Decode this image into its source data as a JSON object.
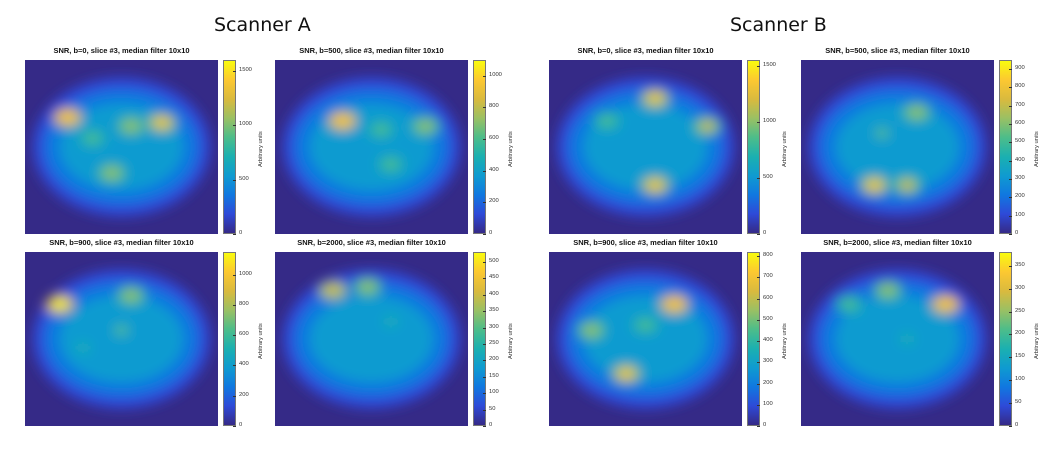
{
  "scanners": [
    {
      "name": "Scanner A"
    },
    {
      "name": "Scanner B"
    }
  ],
  "colormap": [
    "#352a87",
    "#2e4ad8",
    "#1078e0",
    "#0f9bd0",
    "#1bb0b0",
    "#4dbd8a",
    "#9ac064",
    "#d9ba3e",
    "#fcc831",
    "#f9fb0e"
  ],
  "chart_data": [
    {
      "type": "heatmap",
      "scanner": "Scanner A",
      "title": "SNR, b=0, slice #3, median filter 10x10",
      "colorbar_label": "Arbitrary units",
      "clim": [
        0,
        1600
      ],
      "colorbar_ticks": [
        "0",
        "500",
        "1000",
        "1500"
      ],
      "colorbar_tick_values": [
        0,
        500,
        1000,
        1500
      ],
      "hotspots": [
        {
          "x": 0.22,
          "y": 0.33,
          "v": 0.75
        },
        {
          "x": 0.71,
          "y": 0.36,
          "v": 0.7
        },
        {
          "x": 0.55,
          "y": 0.38,
          "v": 0.55
        },
        {
          "x": 0.45,
          "y": 0.65,
          "v": 0.5
        },
        {
          "x": 0.35,
          "y": 0.45,
          "v": 0.4
        }
      ]
    },
    {
      "type": "heatmap",
      "scanner": "Scanner A",
      "title": "SNR, b=500, slice #3, median filter 10x10",
      "colorbar_label": "Arbitrary units",
      "clim": [
        0,
        1100
      ],
      "colorbar_ticks": [
        "0",
        "200",
        "400",
        "600",
        "800",
        "1000"
      ],
      "colorbar_tick_values": [
        0,
        200,
        400,
        600,
        800,
        1000
      ],
      "hotspots": [
        {
          "x": 0.35,
          "y": 0.35,
          "v": 0.75
        },
        {
          "x": 0.55,
          "y": 0.4,
          "v": 0.45
        },
        {
          "x": 0.78,
          "y": 0.38,
          "v": 0.55
        },
        {
          "x": 0.6,
          "y": 0.6,
          "v": 0.4
        }
      ]
    },
    {
      "type": "heatmap",
      "scanner": "Scanner A",
      "title": "SNR, b=900, slice #3, median filter 10x10",
      "colorbar_label": "Arbitrary units",
      "clim": [
        0,
        1150
      ],
      "colorbar_ticks": [
        "0",
        "200",
        "400",
        "600",
        "800",
        "1000"
      ],
      "colorbar_tick_values": [
        0,
        200,
        400,
        600,
        800,
        1000
      ],
      "hotspots": [
        {
          "x": 0.18,
          "y": 0.3,
          "v": 0.8
        },
        {
          "x": 0.55,
          "y": 0.25,
          "v": 0.55
        },
        {
          "x": 0.5,
          "y": 0.45,
          "v": 0.35
        },
        {
          "x": 0.3,
          "y": 0.55,
          "v": 0.3
        }
      ]
    },
    {
      "type": "heatmap",
      "scanner": "Scanner A",
      "title": "SNR, b=2000, slice #3, median filter 10x10",
      "colorbar_label": "Arbitrary units",
      "clim": [
        0,
        530
      ],
      "colorbar_ticks": [
        "0",
        "50",
        "100",
        "150",
        "200",
        "250",
        "300",
        "350",
        "400",
        "450",
        "500"
      ],
      "colorbar_tick_values": [
        0,
        50,
        100,
        150,
        200,
        250,
        300,
        350,
        400,
        450,
        500
      ],
      "hotspots": [
        {
          "x": 0.3,
          "y": 0.22,
          "v": 0.65
        },
        {
          "x": 0.48,
          "y": 0.2,
          "v": 0.5
        },
        {
          "x": 0.6,
          "y": 0.4,
          "v": 0.3
        }
      ]
    },
    {
      "type": "heatmap",
      "scanner": "Scanner B",
      "title": "SNR, b=0, slice #3, median filter 10x10",
      "colorbar_label": "Arbitrary units",
      "clim": [
        0,
        1550
      ],
      "colorbar_ticks": [
        "0",
        "500",
        "1000",
        "1500"
      ],
      "colorbar_tick_values": [
        0,
        500,
        1000,
        1500
      ],
      "hotspots": [
        {
          "x": 0.55,
          "y": 0.22,
          "v": 0.7
        },
        {
          "x": 0.82,
          "y": 0.38,
          "v": 0.6
        },
        {
          "x": 0.55,
          "y": 0.72,
          "v": 0.7
        },
        {
          "x": 0.3,
          "y": 0.35,
          "v": 0.4
        }
      ]
    },
    {
      "type": "heatmap",
      "scanner": "Scanner B",
      "title": "SNR, b=500, slice #3, median filter 10x10",
      "colorbar_label": "Arbitrary units",
      "clim": [
        0,
        950
      ],
      "colorbar_ticks": [
        "0",
        "100",
        "200",
        "300",
        "400",
        "500",
        "600",
        "700",
        "800",
        "900"
      ],
      "colorbar_tick_values": [
        0,
        100,
        200,
        300,
        400,
        500,
        600,
        700,
        800,
        900
      ],
      "hotspots": [
        {
          "x": 0.6,
          "y": 0.3,
          "v": 0.55
        },
        {
          "x": 0.38,
          "y": 0.72,
          "v": 0.7
        },
        {
          "x": 0.55,
          "y": 0.72,
          "v": 0.6
        },
        {
          "x": 0.42,
          "y": 0.42,
          "v": 0.35
        }
      ]
    },
    {
      "type": "heatmap",
      "scanner": "Scanner B",
      "title": "SNR, b=900, slice #3, median filter 10x10",
      "colorbar_label": "Arbitrary units",
      "clim": [
        0,
        820
      ],
      "colorbar_ticks": [
        "0",
        "100",
        "200",
        "300",
        "400",
        "500",
        "600",
        "700",
        "800"
      ],
      "colorbar_tick_values": [
        0,
        100,
        200,
        300,
        400,
        500,
        600,
        700,
        800
      ],
      "hotspots": [
        {
          "x": 0.65,
          "y": 0.3,
          "v": 0.75
        },
        {
          "x": 0.4,
          "y": 0.7,
          "v": 0.7
        },
        {
          "x": 0.22,
          "y": 0.45,
          "v": 0.5
        },
        {
          "x": 0.5,
          "y": 0.42,
          "v": 0.4
        }
      ]
    },
    {
      "type": "heatmap",
      "scanner": "Scanner B",
      "title": "SNR, b=2000, slice #3, median filter 10x10",
      "colorbar_label": "Arbitrary units",
      "clim": [
        0,
        380
      ],
      "colorbar_ticks": [
        "0",
        "50",
        "100",
        "150",
        "200",
        "250",
        "300",
        "350"
      ],
      "colorbar_tick_values": [
        0,
        50,
        100,
        150,
        200,
        250,
        300,
        350
      ],
      "hotspots": [
        {
          "x": 0.75,
          "y": 0.3,
          "v": 0.75
        },
        {
          "x": 0.45,
          "y": 0.22,
          "v": 0.55
        },
        {
          "x": 0.25,
          "y": 0.3,
          "v": 0.4
        },
        {
          "x": 0.55,
          "y": 0.5,
          "v": 0.3
        }
      ]
    }
  ]
}
